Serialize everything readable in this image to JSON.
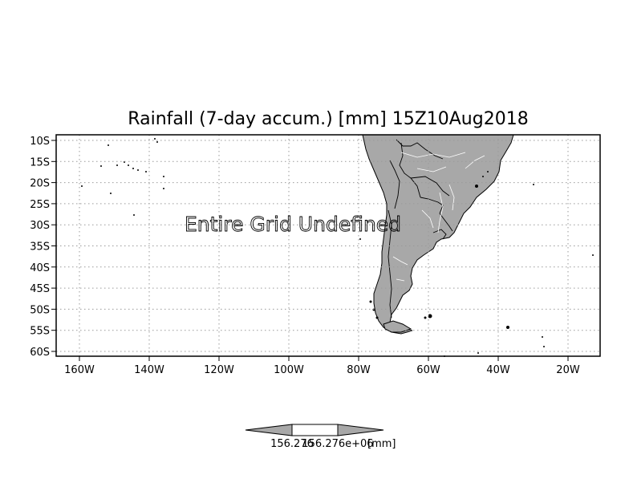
{
  "title": "Rainfall (7-day accum.) [mm] 15Z10Aug2018",
  "message": "Entire Grid Undefined",
  "map": {
    "lat_labels": [
      "10S",
      "15S",
      "20S",
      "25S",
      "30S",
      "35S",
      "40S",
      "45S",
      "50S",
      "55S",
      "60S"
    ],
    "lon_labels": [
      "160W",
      "140W",
      "120W",
      "100W",
      "80W",
      "60W",
      "40W",
      "20W"
    ],
    "land_color": "#a8a8a8",
    "coast_color": "#000000",
    "river_color": "#ffffff"
  },
  "colorbar": {
    "label_left": "156.276",
    "label_mid": "156.276e+06",
    "unit": "[mm]"
  }
}
